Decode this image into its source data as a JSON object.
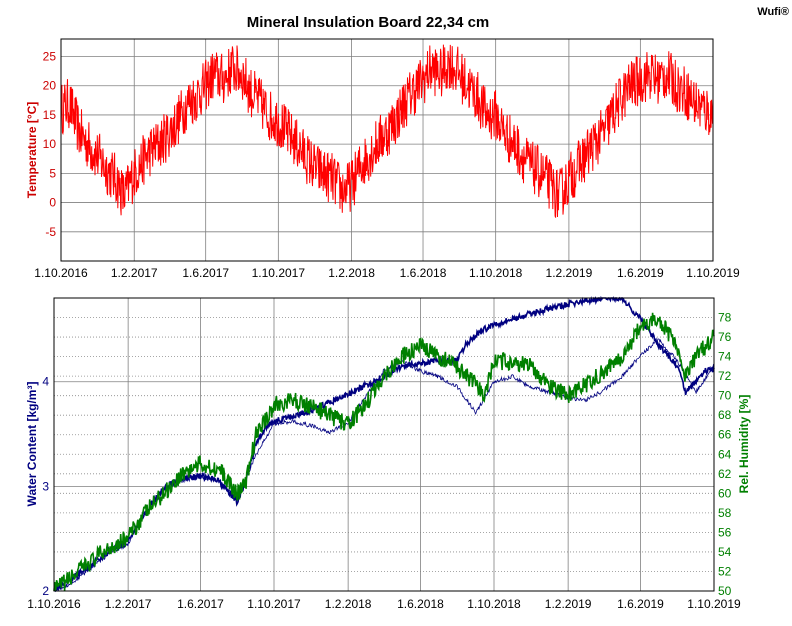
{
  "header": {
    "title": "Mineral Insulation Board 22,34 cm",
    "brand": "Wufi®"
  },
  "chart_data": [
    {
      "type": "line",
      "title": "Mineral Insulation Board 22,34 cm",
      "ylabel": "Temperature [°C]",
      "ylim": [
        -10,
        28
      ],
      "yticks": [
        -5,
        0,
        5,
        10,
        15,
        20,
        25
      ],
      "xlim": [
        "2016-10-01",
        "2019-10-01"
      ],
      "xticks": [
        "1.10.2016",
        "1.2.2017",
        "1.6.2017",
        "1.10.2017",
        "1.2.2018",
        "1.6.2018",
        "1.10.2018",
        "1.2.2019",
        "1.6.2019",
        "1.10.2019"
      ],
      "grid": true,
      "colors": {
        "series": "#ff0000",
        "axis_label": "#cc0000"
      },
      "series": [
        {
          "x": [
            "2016-10-01",
            "2016-10-15",
            "2016-11-01",
            "2016-11-15",
            "2016-12-01",
            "2016-12-15",
            "2017-01-01",
            "2017-01-15",
            "2017-02-01",
            "2017-02-15",
            "2017-03-01",
            "2017-03-15",
            "2017-04-01",
            "2017-04-15",
            "2017-05-01",
            "2017-05-15",
            "2017-06-01",
            "2017-06-15",
            "2017-07-01",
            "2017-07-15",
            "2017-08-01",
            "2017-08-15",
            "2017-09-01",
            "2017-09-15",
            "2017-10-01",
            "2017-10-15",
            "2017-11-01",
            "2017-11-15",
            "2017-12-01",
            "2017-12-15",
            "2018-01-01",
            "2018-01-15",
            "2018-02-01",
            "2018-02-15",
            "2018-03-01",
            "2018-03-15",
            "2018-04-01",
            "2018-04-15",
            "2018-05-01",
            "2018-05-15",
            "2018-06-01",
            "2018-06-15",
            "2018-07-01",
            "2018-07-15",
            "2018-08-01",
            "2018-08-15",
            "2018-09-01",
            "2018-09-15",
            "2018-10-01",
            "2018-10-15",
            "2018-11-01",
            "2018-11-15",
            "2018-12-01",
            "2018-12-15",
            "2019-01-01",
            "2019-01-15",
            "2019-02-01",
            "2019-02-15",
            "2019-03-01",
            "2019-03-15",
            "2019-04-01",
            "2019-04-15",
            "2019-05-01",
            "2019-05-15",
            "2019-06-01",
            "2019-06-15",
            "2019-07-01",
            "2019-07-15",
            "2019-08-01",
            "2019-08-15",
            "2019-09-01",
            "2019-09-15",
            "2019-10-01"
          ],
          "values": [
            16,
            17,
            12,
            10,
            8,
            6,
            4,
            1,
            5,
            7,
            9,
            10,
            12,
            14,
            17,
            18,
            20,
            22,
            21,
            23,
            22,
            19,
            17,
            15,
            14,
            12,
            10,
            8,
            6,
            5,
            4,
            2,
            3,
            6,
            8,
            10,
            12,
            14,
            17,
            19,
            21,
            23,
            22,
            24,
            22,
            20,
            18,
            15,
            15,
            12,
            10,
            8,
            6,
            5,
            3,
            1,
            4,
            6,
            8,
            10,
            12,
            15,
            18,
            20,
            21,
            22,
            21,
            22,
            20,
            19,
            17,
            16,
            15
          ]
        }
      ]
    },
    {
      "type": "line",
      "ylabel": "Water Content [kg/m³]",
      "y2label": "Rel. Humidity [%]",
      "ylim": [
        2,
        4.8
      ],
      "yticks": [
        2,
        3,
        4
      ],
      "y2lim": [
        50,
        80
      ],
      "y2ticks": [
        50,
        52,
        54,
        56,
        58,
        60,
        62,
        64,
        66,
        68,
        70,
        72,
        74,
        76,
        78
      ],
      "xlim": [
        "2016-10-01",
        "2019-10-01"
      ],
      "xticks": [
        "1.10.2016",
        "1.2.2017",
        "1.6.2017",
        "1.10.2017",
        "1.2.2018",
        "1.6.2018",
        "1.10.2018",
        "1.2.2019",
        "1.6.2019",
        "1.10.2019"
      ],
      "grid": true,
      "colors": {
        "water": "#000080",
        "humidity": "#008000"
      },
      "series": [
        {
          "axis": "left",
          "x": [
            "2016-10-01",
            "2016-10-15",
            "2016-11-01",
            "2016-12-01",
            "2017-01-01",
            "2017-02-01",
            "2017-02-15",
            "2017-03-01",
            "2017-04-01",
            "2017-05-01",
            "2017-06-01",
            "2017-07-01",
            "2017-08-01",
            "2017-08-15",
            "2017-09-01",
            "2017-09-15",
            "2017-10-01",
            "2017-11-01",
            "2017-12-01",
            "2018-01-01",
            "2018-02-01",
            "2018-03-01",
            "2018-04-01",
            "2018-05-01",
            "2018-06-01",
            "2018-07-01",
            "2018-08-01",
            "2018-08-15",
            "2018-09-01",
            "2018-09-15",
            "2018-10-01",
            "2018-11-01",
            "2018-12-01",
            "2019-01-01",
            "2019-02-01",
            "2019-03-01",
            "2019-04-01",
            "2019-05-01",
            "2019-06-01",
            "2019-07-01",
            "2019-08-01",
            "2019-08-15",
            "2019-09-01",
            "2019-09-15",
            "2019-10-01"
          ],
          "values": [
            2.02,
            2.05,
            2.12,
            2.25,
            2.38,
            2.5,
            2.6,
            2.75,
            2.98,
            3.08,
            3.1,
            3.05,
            2.85,
            3.05,
            3.4,
            3.55,
            3.62,
            3.67,
            3.72,
            3.8,
            3.88,
            3.96,
            4.05,
            4.15,
            4.18,
            4.2,
            4.2,
            4.35,
            4.45,
            4.5,
            4.55,
            4.6,
            4.65,
            4.7,
            4.74,
            4.77,
            4.8,
            4.8,
            4.6,
            4.35,
            4.15,
            3.9,
            4.0,
            4.1,
            4.12
          ]
        },
        {
          "axis": "left",
          "x": [
            "2016-10-01",
            "2016-11-01",
            "2016-12-01",
            "2017-01-01",
            "2017-02-01",
            "2017-03-01",
            "2017-04-01",
            "2017-05-01",
            "2017-06-01",
            "2017-07-01",
            "2017-08-01",
            "2017-09-01",
            "2017-10-01",
            "2017-11-01",
            "2017-12-01",
            "2018-01-01",
            "2018-02-01",
            "2018-03-01",
            "2018-04-01",
            "2018-05-01",
            "2018-06-01",
            "2018-07-01",
            "2018-08-01",
            "2018-09-01",
            "2018-10-01",
            "2018-11-01",
            "2018-12-01",
            "2019-01-01",
            "2019-02-01",
            "2019-03-01",
            "2019-04-01",
            "2019-05-01",
            "2019-06-01",
            "2019-07-01",
            "2019-08-01",
            "2019-09-01",
            "2019-10-01"
          ],
          "values": [
            2.0,
            2.08,
            2.22,
            2.36,
            2.45,
            2.75,
            2.97,
            3.05,
            3.1,
            3.05,
            2.88,
            3.3,
            3.6,
            3.62,
            3.58,
            3.52,
            3.6,
            3.85,
            4.1,
            4.2,
            4.1,
            4.05,
            3.95,
            3.7,
            4.0,
            4.05,
            3.95,
            3.9,
            3.85,
            3.82,
            3.92,
            4.05,
            4.25,
            4.4,
            4.2,
            3.9,
            4.15
          ]
        },
        {
          "axis": "right",
          "x": [
            "2016-10-01",
            "2016-11-01",
            "2016-12-01",
            "2017-01-01",
            "2017-02-01",
            "2017-03-01",
            "2017-04-01",
            "2017-05-01",
            "2017-06-01",
            "2017-07-01",
            "2017-08-01",
            "2017-08-15",
            "2017-09-01",
            "2017-10-01",
            "2017-11-01",
            "2017-12-01",
            "2018-01-01",
            "2018-02-01",
            "2018-03-01",
            "2018-04-01",
            "2018-05-01",
            "2018-06-01",
            "2018-07-01",
            "2018-08-01",
            "2018-09-01",
            "2018-09-15",
            "2018-10-01",
            "2018-11-01",
            "2018-12-01",
            "2019-01-01",
            "2019-02-01",
            "2019-03-01",
            "2019-04-01",
            "2019-05-01",
            "2019-06-01",
            "2019-07-01",
            "2019-08-01",
            "2019-08-15",
            "2019-09-01",
            "2019-10-01"
          ],
          "values": [
            50,
            51.5,
            53,
            54.5,
            55.5,
            58,
            60,
            62,
            63,
            62.5,
            60,
            61,
            66,
            69,
            69.5,
            69,
            68,
            67,
            69,
            72,
            74,
            75,
            74,
            73,
            71,
            70,
            73.5,
            73.5,
            73,
            71,
            70,
            71,
            72.5,
            74,
            77,
            78,
            75,
            72,
            74,
            76
          ]
        }
      ]
    }
  ]
}
